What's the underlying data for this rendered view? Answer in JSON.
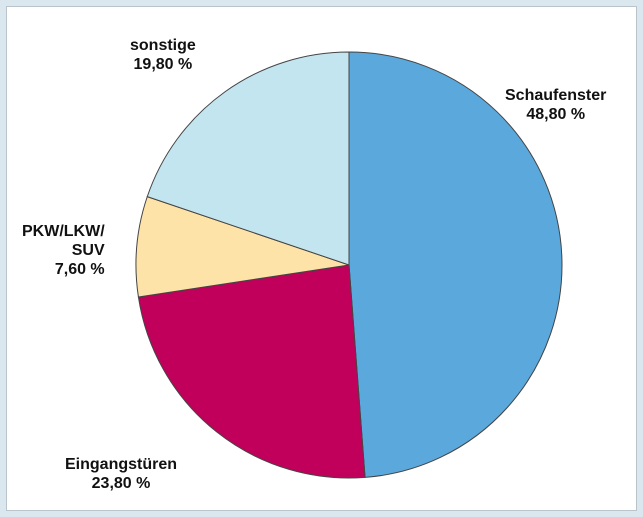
{
  "chart_data": {
    "type": "pie",
    "categories": [
      "Schaufenster",
      "Eingangstüren",
      "PKW/LKW/\nSUV",
      "sonstige"
    ],
    "values": [
      48.8,
      23.8,
      7.6,
      19.8
    ],
    "value_labels": [
      "48,80 %",
      "23,80 %",
      "7,60 %",
      "19,80 %"
    ],
    "colors": [
      "#5aa8dc",
      "#c0005a",
      "#fde3a8",
      "#c3e5f0"
    ]
  }
}
